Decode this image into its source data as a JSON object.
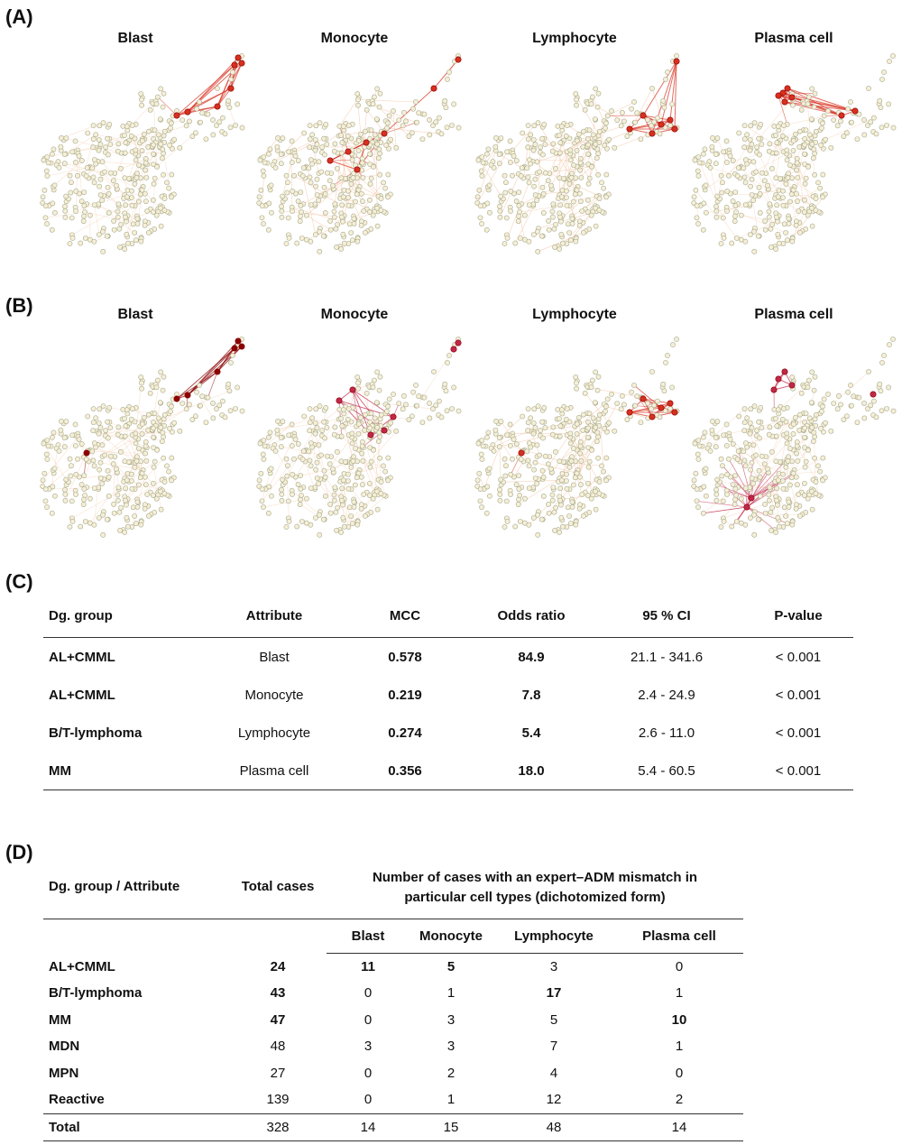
{
  "panels": {
    "a": "(A)",
    "b": "(B)",
    "c": "(C)",
    "d": "(D)"
  },
  "network_titles": [
    "Blast",
    "Monocyte",
    "Lymphocyte",
    "Plasma cell"
  ],
  "table_c": {
    "headers": [
      "Dg. group",
      "Attribute",
      "MCC",
      "Odds ratio",
      "95 % CI",
      "P-value"
    ],
    "rows": [
      [
        "AL+CMML",
        "Blast",
        "0.578",
        "84.9",
        "21.1 - 341.6",
        "< 0.001"
      ],
      [
        "AL+CMML",
        "Monocyte",
        "0.219",
        "7.8",
        "2.4 - 24.9",
        "< 0.001"
      ],
      [
        "B/T-lymphoma",
        "Lymphocyte",
        "0.274",
        "5.4",
        "2.6 - 11.0",
        "< 0.001"
      ],
      [
        "MM",
        "Plasma cell",
        "0.356",
        "18.0",
        "5.4 - 60.5",
        "< 0.001"
      ]
    ]
  },
  "table_d": {
    "header_group": "Dg. group / Attribute",
    "header_total": "Total cases",
    "header_span": "Number of cases with an expert–ADM mismatch in particular cell types (dichotomized form)",
    "sub_headers": [
      "Blast",
      "Monocyte",
      "Lymphocyte",
      "Plasma cell"
    ],
    "rows": [
      [
        "AL+CMML",
        "24",
        "11",
        "5",
        "3",
        "0"
      ],
      [
        "B/T-lymphoma",
        "43",
        "0",
        "1",
        "17",
        "1"
      ],
      [
        "MM",
        "47",
        "0",
        "3",
        "5",
        "10"
      ],
      [
        "MDN",
        "48",
        "3",
        "3",
        "7",
        "1"
      ],
      [
        "MPN",
        "27",
        "0",
        "2",
        "4",
        "0"
      ],
      [
        "Reactive",
        "139",
        "0",
        "1",
        "12",
        "2"
      ]
    ],
    "total_row": [
      "Total",
      "328",
      "14",
      "15",
      "48",
      "14"
    ]
  },
  "colors": {
    "node_fill": "#f6efd8",
    "node_stroke": "#a7a98a",
    "edge_light": "#f6cfb4",
    "highlight_red": "#d7301f",
    "dark_red": "#8b0000",
    "crimson": "#c0284a"
  }
}
